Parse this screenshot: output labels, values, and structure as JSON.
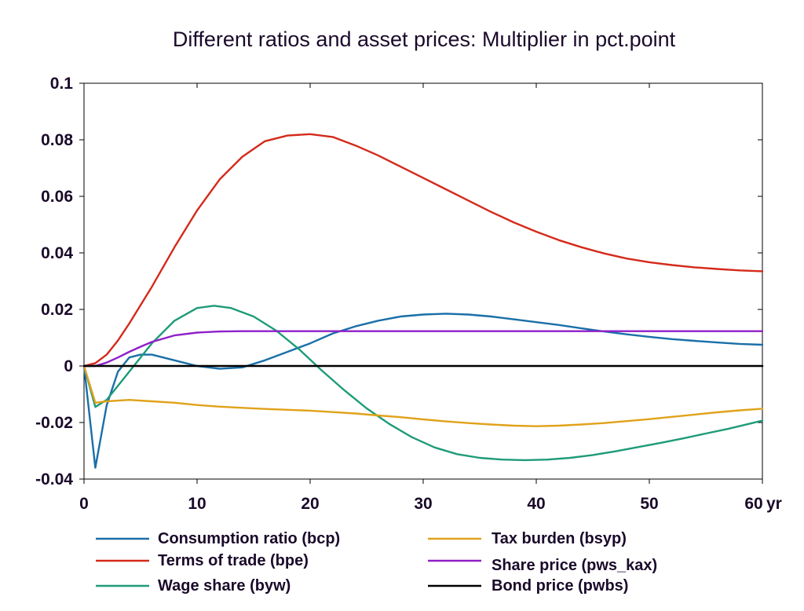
{
  "chart_data": {
    "type": "line",
    "title": "Different ratios and asset prices: Multiplier in pct.point",
    "xlabel": "",
    "ylabel": "",
    "x_unit_label": "yr",
    "xlim": [
      0,
      60
    ],
    "ylim": [
      -0.04,
      0.1
    ],
    "x_ticks": [
      0,
      10,
      20,
      30,
      40,
      50,
      60
    ],
    "x_tick_labels": [
      "0",
      "10",
      "20",
      "30",
      "40",
      "50",
      "60"
    ],
    "y_ticks": [
      -0.04,
      -0.02,
      0,
      0.02,
      0.04,
      0.06,
      0.08,
      0.1
    ],
    "y_tick_labels": [
      "-0.04",
      "-0.02",
      "0",
      "0.02",
      "0.04",
      "0.06",
      "0.08",
      "0.1"
    ],
    "grid": false,
    "legend_position": "bottom",
    "series": [
      {
        "name": "Consumption ratio (bcp)",
        "color": "#1a6fa8",
        "x": [
          0,
          1,
          2,
          3,
          4,
          5,
          6,
          8,
          10,
          12,
          14,
          16,
          18,
          20,
          22,
          24,
          26,
          28,
          30,
          32,
          34,
          36,
          38,
          40,
          42,
          44,
          46,
          48,
          50,
          52,
          54,
          56,
          58,
          60
        ],
        "y": [
          0,
          -0.036,
          -0.014,
          -0.002,
          0.003,
          0.004,
          0.004,
          0.002,
          0,
          -0.001,
          -0.0005,
          0.002,
          0.005,
          0.008,
          0.0115,
          0.014,
          0.016,
          0.0175,
          0.0182,
          0.0185,
          0.0182,
          0.0175,
          0.0165,
          0.0155,
          0.0145,
          0.0133,
          0.0122,
          0.0112,
          0.0103,
          0.0095,
          0.0089,
          0.0083,
          0.0078,
          0.0075
        ]
      },
      {
        "name": "Terms of trade (bpe)",
        "color": "#d42a1a",
        "x": [
          0,
          1,
          2,
          3,
          4,
          6,
          8,
          10,
          12,
          14,
          16,
          18,
          20,
          22,
          24,
          26,
          28,
          30,
          32,
          34,
          36,
          38,
          40,
          42,
          44,
          46,
          48,
          50,
          52,
          54,
          56,
          58,
          60
        ],
        "y": [
          0,
          0.001,
          0.004,
          0.009,
          0.015,
          0.028,
          0.042,
          0.055,
          0.066,
          0.074,
          0.0795,
          0.0815,
          0.082,
          0.081,
          0.078,
          0.0745,
          0.0705,
          0.0665,
          0.0625,
          0.0585,
          0.0545,
          0.0508,
          0.0475,
          0.0445,
          0.042,
          0.0398,
          0.038,
          0.0367,
          0.0357,
          0.0349,
          0.0343,
          0.0338,
          0.0335
        ]
      },
      {
        "name": "Wage share (byw)",
        "color": "#1e9b78",
        "x": [
          0,
          1,
          2,
          3,
          4,
          6,
          8,
          10,
          11.5,
          13,
          15,
          17,
          19,
          21,
          23,
          25,
          27,
          29,
          31,
          33,
          35,
          37,
          39,
          41,
          43,
          45,
          47,
          49,
          51,
          53,
          55,
          57,
          59,
          60
        ],
        "y": [
          0,
          -0.0145,
          -0.012,
          -0.007,
          -0.002,
          0.008,
          0.016,
          0.0205,
          0.0213,
          0.0205,
          0.0175,
          0.0125,
          0.006,
          -0.0015,
          -0.0085,
          -0.015,
          -0.0205,
          -0.0252,
          -0.0288,
          -0.0312,
          -0.0325,
          -0.0331,
          -0.0333,
          -0.0331,
          -0.0325,
          -0.0315,
          -0.0302,
          -0.0287,
          -0.0272,
          -0.0256,
          -0.0239,
          -0.0222,
          -0.0203,
          -0.0193
        ]
      },
      {
        "name": "Tax burden (bsyp)",
        "color": "#e0a21a",
        "x": [
          0,
          1,
          2,
          4,
          6,
          8,
          10,
          12,
          14,
          16,
          18,
          20,
          22,
          24,
          26,
          28,
          30,
          32,
          34,
          36,
          38,
          40,
          42,
          44,
          46,
          48,
          50,
          52,
          54,
          56,
          58,
          60
        ],
        "y": [
          0,
          -0.013,
          -0.0125,
          -0.012,
          -0.0125,
          -0.013,
          -0.0138,
          -0.0144,
          -0.0148,
          -0.0152,
          -0.0155,
          -0.0158,
          -0.0163,
          -0.0168,
          -0.0175,
          -0.0181,
          -0.0189,
          -0.0196,
          -0.0202,
          -0.0207,
          -0.0211,
          -0.0213,
          -0.0211,
          -0.0207,
          -0.0202,
          -0.0195,
          -0.0188,
          -0.018,
          -0.0172,
          -0.0164,
          -0.0157,
          -0.0151
        ]
      },
      {
        "name": "Share price (pws_kax)",
        "color": "#8f1fc8",
        "x": [
          0,
          1,
          2,
          3,
          4,
          5,
          6,
          8,
          10,
          12,
          14,
          16,
          20,
          30,
          40,
          50,
          60
        ],
        "y": [
          0,
          0,
          0.0012,
          0.003,
          0.005,
          0.0068,
          0.0085,
          0.0108,
          0.0118,
          0.0122,
          0.0123,
          0.0123,
          0.0123,
          0.0123,
          0.0123,
          0.0123,
          0.0123
        ]
      },
      {
        "name": "Bond price (pwbs)",
        "color": "#000000",
        "x": [
          0,
          60
        ],
        "y": [
          0,
          0
        ]
      }
    ]
  }
}
